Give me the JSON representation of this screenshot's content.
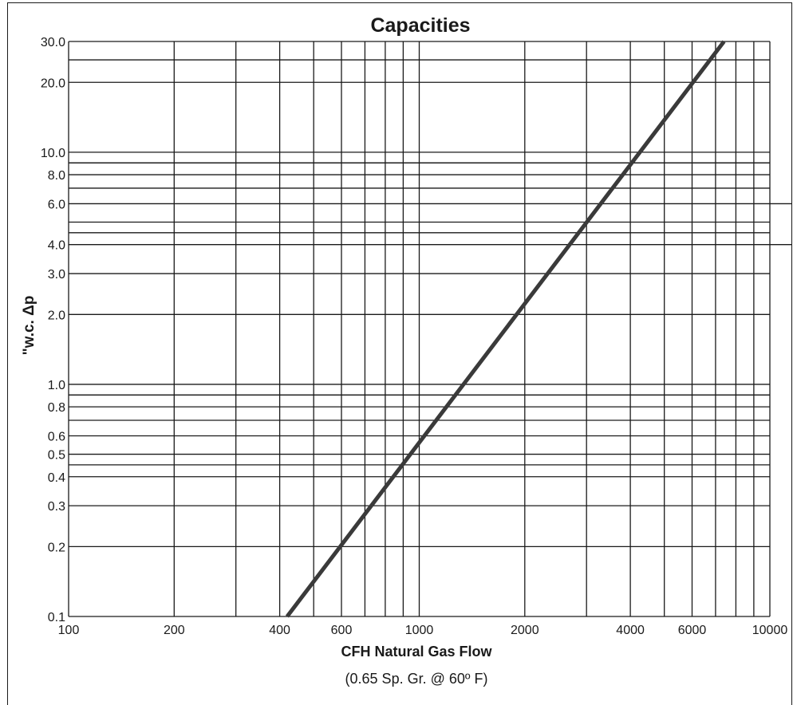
{
  "chart_data": {
    "type": "line",
    "title": "Capacities",
    "xlabel": "CFH Natural Gas Flow",
    "xlabel_note": "(0.65 Sp. Gr. @ 60º F)",
    "ylabel": "\"w.c. Δp",
    "x_scale": "log",
    "y_scale": "log",
    "xlim": [
      100,
      10000
    ],
    "ylim": [
      0.1,
      30
    ],
    "x_ticks": [
      100,
      200,
      400,
      600,
      1000,
      2000,
      4000,
      6000,
      10000
    ],
    "x_tick_labels": [
      "100",
      "200",
      "400",
      "600",
      "1000",
      "2000",
      "4000",
      "6000",
      "10000"
    ],
    "y_ticks": [
      0.1,
      0.2,
      0.3,
      0.4,
      0.5,
      0.6,
      0.8,
      1.0,
      2.0,
      3.0,
      4.0,
      6.0,
      8.0,
      10.0,
      20.0,
      30.0
    ],
    "y_tick_labels": [
      "0.1",
      "0.2",
      "0.3",
      "0.4",
      "0.5",
      "0.6",
      "0.8",
      "1.0",
      "2.0",
      "3.0",
      "4.0",
      "6.0",
      "8.0",
      "10.0",
      "20.0",
      "30.0"
    ],
    "grid": true,
    "series": [
      {
        "x": [
          420,
          7400
        ],
        "y": [
          0.1,
          30
        ]
      }
    ]
  },
  "colors": {
    "grid": "#1a1a1a",
    "line": "#3a3a3a",
    "text": "#1a1a1a",
    "background": "#ffffff"
  }
}
